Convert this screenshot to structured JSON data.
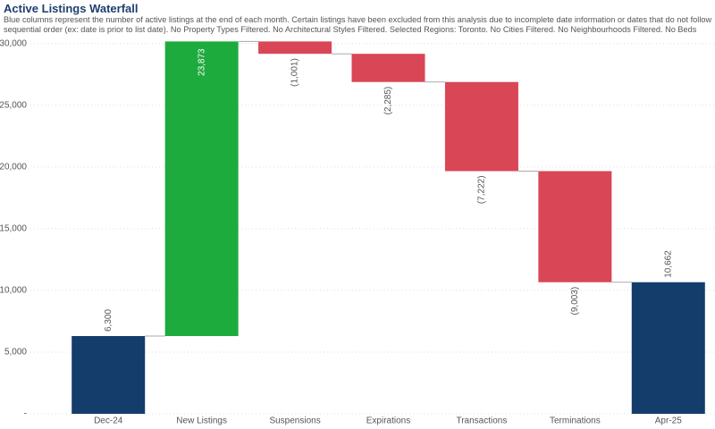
{
  "chart_data": {
    "type": "waterfall",
    "title": "Active Listings Waterfall",
    "subtitle": "Blue columns represent the number of active listings at the end of each month. Certain listings have been excluded from this analysis due to incomplete date information or dates that do not follow sequential order (ex: date is prior to list date). No Property Types Filtered. No Architectural Styles Filtered. Selected Regions: Toronto. No Cities Filtered. No Neighbourhoods Filtered. No Beds Filtered. No Baths Filtered.",
    "categories": [
      "Dec-24",
      "New Listings",
      "Suspensions",
      "Expirations",
      "Transactions",
      "Terminations",
      "Apr-25"
    ],
    "values": [
      6300,
      23873,
      -1001,
      -2285,
      -7222,
      -9003,
      10662
    ],
    "value_labels": [
      "6,300",
      "23,873",
      "(1,001)",
      "(2,285)",
      "(7,222)",
      "(9,003)",
      "10,662"
    ],
    "colors": {
      "total": "#143d6b",
      "increase": "#1eab3e",
      "decrease": "#d94656"
    },
    "ylim": [
      0,
      30200
    ],
    "yticks": [
      {
        "value": 0,
        "label": "-"
      },
      {
        "value": 5000,
        "label": "5,000"
      },
      {
        "value": 10000,
        "label": "10,000"
      },
      {
        "value": 15000,
        "label": "15,000"
      },
      {
        "value": 20000,
        "label": "20,000"
      },
      {
        "value": 25000,
        "label": "25,000"
      },
      {
        "value": 30000,
        "label": "30,000"
      }
    ],
    "grid": true
  }
}
